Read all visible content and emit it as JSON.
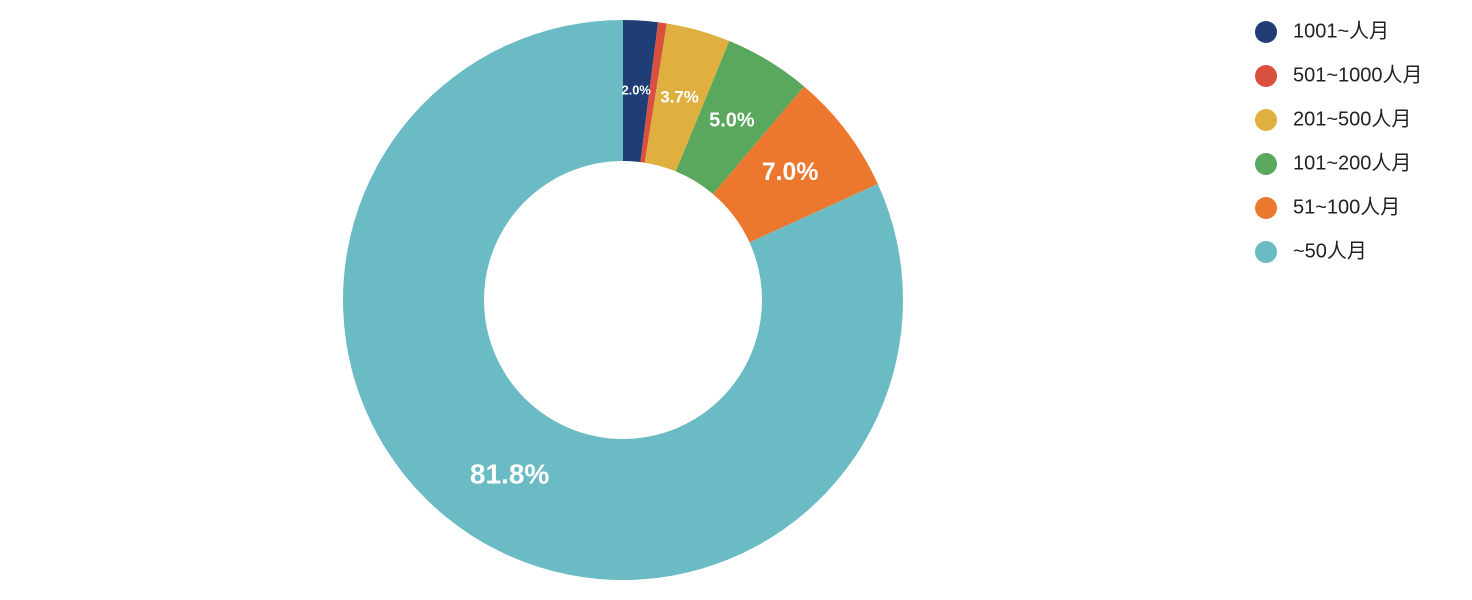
{
  "chart_data": {
    "type": "pie",
    "categories": [
      "1001~人月",
      "501~1000人月",
      "201~500人月",
      "101~200人月",
      "51~100人月",
      "~50人月"
    ],
    "values": [
      2.0,
      0.5,
      3.7,
      5.0,
      7.0,
      81.8
    ],
    "value_labels": [
      "2.0%",
      null,
      "3.7%",
      "5.0%",
      "7.0%",
      "81.8%"
    ],
    "colors": [
      "#1e3e75",
      "#d9503f",
      "#dfb03f",
      "#5aa75e",
      "#ec7830",
      "#6bbbc4"
    ],
    "legend": "top-right"
  }
}
